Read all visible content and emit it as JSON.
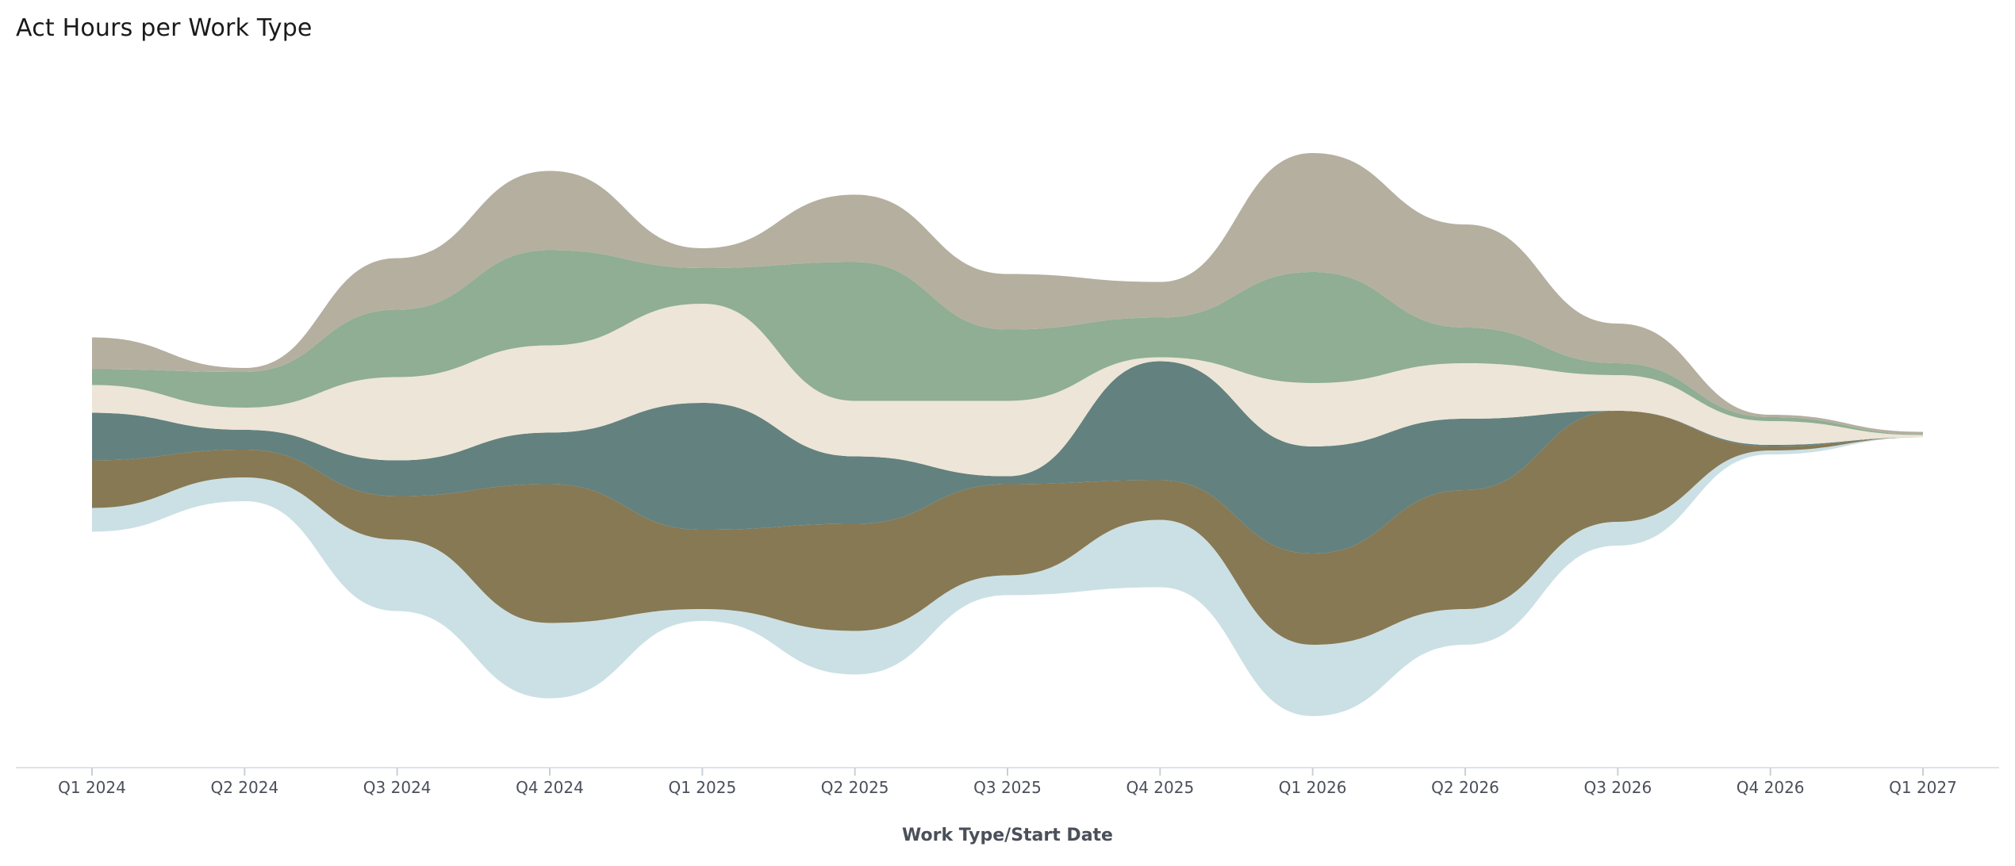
{
  "chart_data": {
    "type": "area",
    "layout": "streamgraph",
    "title": "Act Hours per Work Type",
    "xlabel": "Work Type/Start Date",
    "ylabel": "",
    "categories": [
      "Q1 2024",
      "Q2 2024",
      "Q3 2024",
      "Q4 2024",
      "Q1 2025",
      "Q2 2025",
      "Q3 2025",
      "Q4 2025",
      "Q1 2026",
      "Q2 2026",
      "Q3 2026",
      "Q4 2026",
      "Q1 2027"
    ],
    "grid": false,
    "legend": "none",
    "series": [
      {
        "color": "#cbe0e5",
        "values": [
          30,
          30,
          90,
          95,
          15,
          55,
          25,
          85,
          90,
          45,
          30,
          5,
          0
        ]
      },
      {
        "color": "#877954",
        "values": [
          60,
          35,
          55,
          175,
          100,
          135,
          115,
          50,
          115,
          150,
          140,
          5,
          0
        ]
      },
      {
        "color": "#63817f",
        "values": [
          60,
          25,
          45,
          65,
          160,
          85,
          10,
          150,
          135,
          90,
          0,
          2,
          0
        ]
      },
      {
        "color": "#ede5d7",
        "values": [
          35,
          28,
          105,
          110,
          125,
          70,
          95,
          5,
          80,
          70,
          45,
          30,
          3
        ]
      },
      {
        "color": "#8fae93",
        "values": [
          20,
          45,
          85,
          120,
          45,
          175,
          90,
          50,
          140,
          45,
          15,
          5,
          1
        ]
      },
      {
        "color": "#b5afa0",
        "values": [
          40,
          5,
          65,
          100,
          25,
          85,
          70,
          45,
          150,
          130,
          50,
          3,
          3
        ]
      }
    ]
  }
}
